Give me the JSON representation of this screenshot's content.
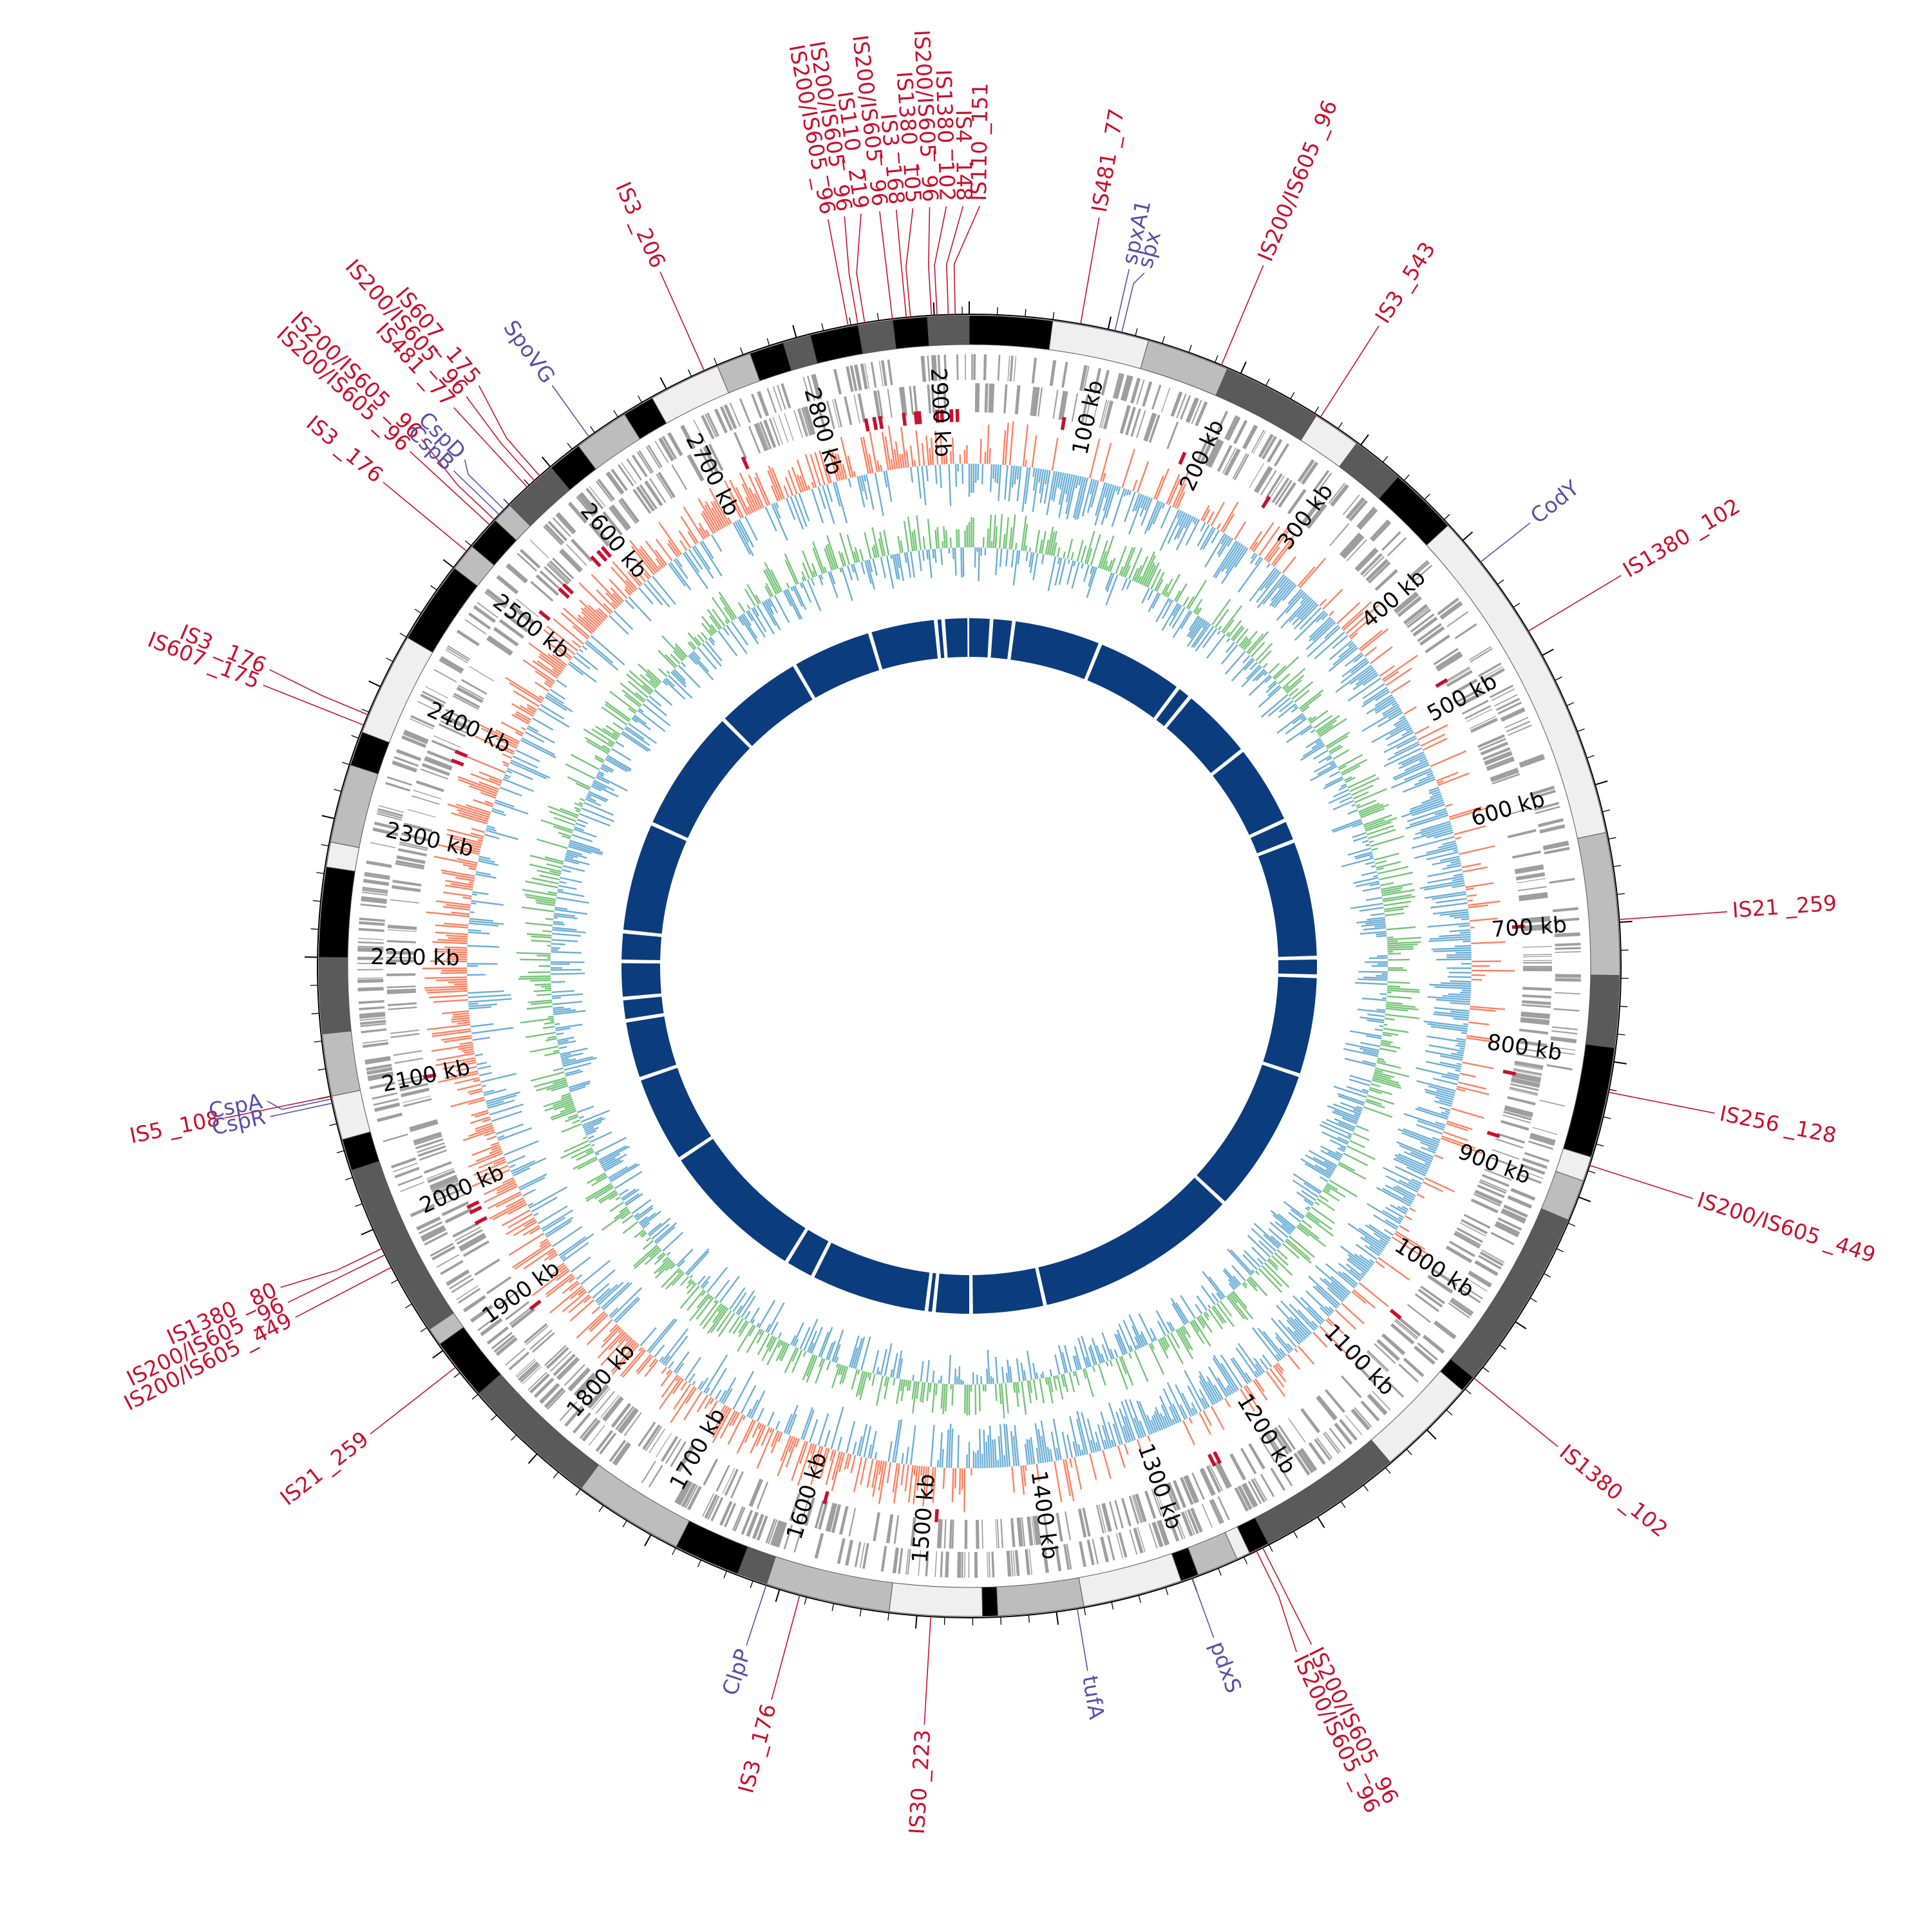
{
  "genome": {
    "length_kb": 2925,
    "tick_labels": [
      "100 kb",
      "200 kb",
      "300 kb",
      "400 kb",
      "500 kb",
      "600 kb",
      "700 kb",
      "800 kb",
      "900 kb",
      "1000 kb",
      "1100 kb",
      "1200 kb",
      "1300 kb",
      "1400 kb",
      "1500 kb",
      "1600 kb",
      "1700 kb",
      "1800 kb",
      "1900 kb",
      "2000 kb",
      "2100 kb",
      "2200 kb",
      "2300 kb",
      "2400 kb",
      "2500 kb",
      "2600 kb",
      "2700 kb",
      "2800 kb",
      "2900 kb"
    ]
  },
  "colors": {
    "is_element": "#c8102e",
    "gene": "#5b4ea8",
    "cds_track": "#9e9e9e",
    "gc_skew_positive": "#fb8060",
    "gc_skew_negative": "#6baed6",
    "gc_content_positive": "#74c476",
    "gc_content_negative": "#6baed6",
    "inner_ring": "#0b3d7e"
  },
  "outer_blocks": [
    {
      "start": 0,
      "end": 60,
      "shade": "#000000"
    },
    {
      "start": 60,
      "end": 130,
      "shade": "#efefef"
    },
    {
      "start": 130,
      "end": 190,
      "shade": "#bdbdbd"
    },
    {
      "start": 190,
      "end": 262,
      "shade": "#5a5a5a"
    },
    {
      "start": 262,
      "end": 297,
      "shade": "#efefef"
    },
    {
      "start": 297,
      "end": 335,
      "shade": "#5a5a5a"
    },
    {
      "start": 335,
      "end": 385,
      "shade": "#000000"
    },
    {
      "start": 385,
      "end": 635,
      "shade": "#efefef"
    },
    {
      "start": 635,
      "end": 738,
      "shade": "#bdbdbd"
    },
    {
      "start": 738,
      "end": 790,
      "shade": "#5a5a5a"
    },
    {
      "start": 790,
      "end": 870,
      "shade": "#000000"
    },
    {
      "start": 870,
      "end": 888,
      "shade": "#efefef"
    },
    {
      "start": 888,
      "end": 918,
      "shade": "#bdbdbd"
    },
    {
      "start": 918,
      "end": 1050,
      "shade": "#5a5a5a"
    },
    {
      "start": 1050,
      "end": 1062,
      "shade": "#000000"
    },
    {
      "start": 1062,
      "end": 1135,
      "shade": "#efefef"
    },
    {
      "start": 1135,
      "end": 1240,
      "shade": "#5a5a5a"
    },
    {
      "start": 1240,
      "end": 1255,
      "shade": "#000000"
    },
    {
      "start": 1255,
      "end": 1265,
      "shade": "#efefef"
    },
    {
      "start": 1265,
      "end": 1295,
      "shade": "#bdbdbd"
    },
    {
      "start": 1295,
      "end": 1308,
      "shade": "#000000"
    },
    {
      "start": 1308,
      "end": 1380,
      "shade": "#efefef"
    },
    {
      "start": 1380,
      "end": 1442,
      "shade": "#bdbdbd"
    },
    {
      "start": 1442,
      "end": 1453,
      "shade": "#000000"
    },
    {
      "start": 1453,
      "end": 1520,
      "shade": "#efefef"
    },
    {
      "start": 1520,
      "end": 1610,
      "shade": "#bdbdbd"
    },
    {
      "start": 1610,
      "end": 1632,
      "shade": "#5a5a5a"
    },
    {
      "start": 1632,
      "end": 1680,
      "shade": "#000000"
    },
    {
      "start": 1680,
      "end": 1760,
      "shade": "#bdbdbd"
    },
    {
      "start": 1760,
      "end": 1860,
      "shade": "#5a5a5a"
    },
    {
      "start": 1860,
      "end": 1905,
      "shade": "#000000"
    },
    {
      "start": 1905,
      "end": 1918,
      "shade": "#bdbdbd"
    },
    {
      "start": 1918,
      "end": 2045,
      "shade": "#5a5a5a"
    },
    {
      "start": 2045,
      "end": 2068,
      "shade": "#000000"
    },
    {
      "start": 2068,
      "end": 2100,
      "shade": "#efefef"
    },
    {
      "start": 2100,
      "end": 2145,
      "shade": "#bdbdbd"
    },
    {
      "start": 2145,
      "end": 2200,
      "shade": "#5a5a5a"
    },
    {
      "start": 2200,
      "end": 2265,
      "shade": "#000000"
    },
    {
      "start": 2265,
      "end": 2283,
      "shade": "#efefef"
    },
    {
      "start": 2283,
      "end": 2340,
      "shade": "#bdbdbd"
    },
    {
      "start": 2340,
      "end": 2365,
      "shade": "#000000"
    },
    {
      "start": 2365,
      "end": 2440,
      "shade": "#efefef"
    },
    {
      "start": 2440,
      "end": 2500,
      "shade": "#000000"
    },
    {
      "start": 2500,
      "end": 2520,
      "shade": "#bdbdbd"
    },
    {
      "start": 2520,
      "end": 2545,
      "shade": "#000000"
    },
    {
      "start": 2545,
      "end": 2560,
      "shade": "#bdbdbd"
    },
    {
      "start": 2560,
      "end": 2600,
      "shade": "#5a5a5a"
    },
    {
      "start": 2600,
      "end": 2625,
      "shade": "#000000"
    },
    {
      "start": 2625,
      "end": 2665,
      "shade": "#bdbdbd"
    },
    {
      "start": 2665,
      "end": 2688,
      "shade": "#000000"
    },
    {
      "start": 2688,
      "end": 2740,
      "shade": "#efefef"
    },
    {
      "start": 2740,
      "end": 2765,
      "shade": "#bdbdbd"
    },
    {
      "start": 2765,
      "end": 2790,
      "shade": "#000000"
    },
    {
      "start": 2790,
      "end": 2810,
      "shade": "#5a5a5a"
    },
    {
      "start": 2810,
      "end": 2845,
      "shade": "#000000"
    },
    {
      "start": 2845,
      "end": 2870,
      "shade": "#5a5a5a"
    },
    {
      "start": 2870,
      "end": 2895,
      "shade": "#000000"
    },
    {
      "start": 2895,
      "end": 2925,
      "shade": "#5a5a5a"
    }
  ],
  "inner_ring_gaps_kb": [
    30,
    60,
    180,
    300,
    320,
    420,
    530,
    560,
    720,
    745,
    880,
    1080,
    1360,
    1460,
    1510,
    1520,
    1680,
    1720,
    1920,
    2040,
    2120,
    2150,
    2200,
    2240,
    2390,
    2560,
    2680,
    2790,
    2880,
    2890
  ],
  "is_elements": [
    {
      "pos": 2838,
      "label": "IS200/IS605 _96"
    },
    {
      "pos": 2845,
      "label": "IS200/IS605 _96"
    },
    {
      "pos": 2850,
      "label": "IS110 _219"
    },
    {
      "pos": 2870,
      "label": "IS200/IS605 _96"
    },
    {
      "pos": 2880,
      "label": "IS3 _168"
    },
    {
      "pos": 2883,
      "label": "IS1380 _105"
    },
    {
      "pos": 2898,
      "label": "IS200/IS605 _96"
    },
    {
      "pos": 2902,
      "label": "IS1380 _102"
    },
    {
      "pos": 2910,
      "label": "IS4 _148"
    },
    {
      "pos": 2915,
      "label": "IS110 _151"
    },
    {
      "pos": 80,
      "label": "IS481 _77"
    },
    {
      "pos": 185,
      "label": "IS200/IS605 _96"
    },
    {
      "pos": 265,
      "label": "IS3 _543"
    },
    {
      "pos": 480,
      "label": "IS1380 _102"
    },
    {
      "pos": 698,
      "label": "IS21 _259"
    },
    {
      "pos": 822,
      "label": "IS256 _128"
    },
    {
      "pos": 876,
      "label": "IS200/IS605 _449"
    },
    {
      "pos": 1050,
      "label": "IS1380 _102"
    },
    {
      "pos": 1245,
      "label": "IS200/IS605 _96"
    },
    {
      "pos": 1250,
      "label": "IS200/IS605 _96"
    },
    {
      "pos": 1490,
      "label": "IS30 _223"
    },
    {
      "pos": 1585,
      "label": "IS3 _176"
    },
    {
      "pos": 1885,
      "label": "IS21 _259"
    },
    {
      "pos": 1970,
      "label": "IS200/IS605 _449"
    },
    {
      "pos": 1980,
      "label": "IS200/IS605 _96"
    },
    {
      "pos": 1985,
      "label": "IS1380 _80"
    },
    {
      "pos": 2100,
      "label": "IS5 _108"
    },
    {
      "pos": 2370,
      "label": "IS607 _175"
    },
    {
      "pos": 2378,
      "label": "IS3 _176"
    },
    {
      "pos": 2515,
      "label": "IS3 _176"
    },
    {
      "pos": 2540,
      "label": "IS200/IS605 _96"
    },
    {
      "pos": 2545,
      "label": "IS200/IS605 _96"
    },
    {
      "pos": 2578,
      "label": "IS481 _77"
    },
    {
      "pos": 2585,
      "label": "IS200/IS605 _96"
    },
    {
      "pos": 2590,
      "label": "IS607 _175"
    },
    {
      "pos": 2730,
      "label": "IS3 _206"
    }
  ],
  "genes": [
    {
      "pos": 105,
      "label": "spxA1"
    },
    {
      "pos": 110,
      "label": "spx"
    },
    {
      "pos": 420,
      "label": "CodY"
    },
    {
      "pos": 1300,
      "label": "pdxS"
    },
    {
      "pos": 1385,
      "label": "tufA"
    },
    {
      "pos": 1610,
      "label": "ClpP"
    },
    {
      "pos": 2095,
      "label": "CspR"
    },
    {
      "pos": 2098,
      "label": "CspA"
    },
    {
      "pos": 2550,
      "label": "CspB"
    },
    {
      "pos": 2555,
      "label": "CspD"
    },
    {
      "pos": 2635,
      "label": "SpoVG"
    }
  ]
}
